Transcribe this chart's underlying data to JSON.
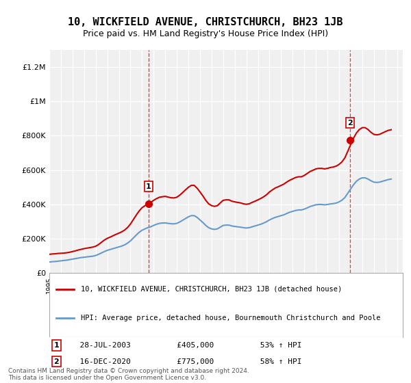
{
  "title": "10, WICKFIELD AVENUE, CHRISTCHURCH, BH23 1JB",
  "subtitle": "Price paid vs. HM Land Registry's House Price Index (HPI)",
  "ylabel_ticks": [
    "£0",
    "£200K",
    "£400K",
    "£600K",
    "£800K",
    "£1M",
    "£1.2M"
  ],
  "ylabel_values": [
    0,
    200000,
    400000,
    600000,
    800000,
    1000000,
    1200000
  ],
  "ylim": [
    0,
    1300000
  ],
  "xlim_start": 1995.0,
  "xlim_end": 2025.5,
  "background_color": "#ffffff",
  "plot_bg_color": "#f0f0f0",
  "grid_color": "#ffffff",
  "red_line_color": "#cc0000",
  "blue_line_color": "#6699cc",
  "sale1_x": 2003.57,
  "sale1_y": 405000,
  "sale1_label": "1",
  "sale1_date": "28-JUL-2003",
  "sale1_price": "£405,000",
  "sale1_hpi": "53% ↑ HPI",
  "sale2_x": 2020.96,
  "sale2_y": 775000,
  "sale2_label": "2",
  "sale2_date": "16-DEC-2020",
  "sale2_price": "£775,000",
  "sale2_hpi": "58% ↑ HPI",
  "legend_line1": "10, WICKFIELD AVENUE, CHRISTCHURCH, BH23 1JB (detached house)",
  "legend_line2": "HPI: Average price, detached house, Bournemouth Christchurch and Poole",
  "footnote": "Contains HM Land Registry data © Crown copyright and database right 2024.\nThis data is licensed under the Open Government Licence v3.0.",
  "hpi_years": [
    1995.0,
    1995.25,
    1995.5,
    1995.75,
    1996.0,
    1996.25,
    1996.5,
    1996.75,
    1997.0,
    1997.25,
    1997.5,
    1997.75,
    1998.0,
    1998.25,
    1998.5,
    1998.75,
    1999.0,
    1999.25,
    1999.5,
    1999.75,
    2000.0,
    2000.25,
    2000.5,
    2000.75,
    2001.0,
    2001.25,
    2001.5,
    2001.75,
    2002.0,
    2002.25,
    2002.5,
    2002.75,
    2003.0,
    2003.25,
    2003.5,
    2003.75,
    2004.0,
    2004.25,
    2004.5,
    2004.75,
    2005.0,
    2005.25,
    2005.5,
    2005.75,
    2006.0,
    2006.25,
    2006.5,
    2006.75,
    2007.0,
    2007.25,
    2007.5,
    2007.75,
    2008.0,
    2008.25,
    2008.5,
    2008.75,
    2009.0,
    2009.25,
    2009.5,
    2009.75,
    2010.0,
    2010.25,
    2010.5,
    2010.75,
    2011.0,
    2011.25,
    2011.5,
    2011.75,
    2012.0,
    2012.25,
    2012.5,
    2012.75,
    2013.0,
    2013.25,
    2013.5,
    2013.75,
    2014.0,
    2014.25,
    2014.5,
    2014.75,
    2015.0,
    2015.25,
    2015.5,
    2015.75,
    2016.0,
    2016.25,
    2016.5,
    2016.75,
    2017.0,
    2017.25,
    2017.5,
    2017.75,
    2018.0,
    2018.25,
    2018.5,
    2018.75,
    2019.0,
    2019.25,
    2019.5,
    2019.75,
    2020.0,
    2020.25,
    2020.5,
    2020.75,
    2021.0,
    2021.25,
    2021.5,
    2021.75,
    2022.0,
    2022.25,
    2022.5,
    2022.75,
    2023.0,
    2023.25,
    2023.5,
    2023.75,
    2024.0,
    2024.25,
    2024.5
  ],
  "hpi_values": [
    65000,
    67000,
    68000,
    70000,
    72000,
    74000,
    76000,
    79000,
    82000,
    85000,
    88000,
    91000,
    93000,
    95000,
    97000,
    99000,
    103000,
    110000,
    118000,
    126000,
    133000,
    138000,
    143000,
    148000,
    153000,
    158000,
    165000,
    175000,
    188000,
    205000,
    222000,
    238000,
    250000,
    258000,
    265000,
    270000,
    278000,
    285000,
    290000,
    292000,
    293000,
    290000,
    288000,
    287000,
    290000,
    298000,
    308000,
    318000,
    328000,
    335000,
    335000,
    325000,
    310000,
    295000,
    278000,
    265000,
    258000,
    255000,
    258000,
    268000,
    278000,
    280000,
    280000,
    275000,
    272000,
    270000,
    268000,
    265000,
    263000,
    265000,
    270000,
    275000,
    280000,
    285000,
    292000,
    300000,
    310000,
    318000,
    325000,
    330000,
    335000,
    340000,
    348000,
    355000,
    360000,
    365000,
    368000,
    368000,
    373000,
    380000,
    388000,
    393000,
    398000,
    400000,
    400000,
    398000,
    400000,
    403000,
    405000,
    408000,
    415000,
    425000,
    440000,
    465000,
    490000,
    515000,
    535000,
    548000,
    555000,
    555000,
    548000,
    538000,
    530000,
    528000,
    530000,
    535000,
    540000,
    545000,
    548000
  ],
  "red_years": [
    1995.0,
    1995.25,
    1995.5,
    1995.75,
    1996.0,
    1996.25,
    1996.5,
    1996.75,
    1997.0,
    1997.25,
    1997.5,
    1997.75,
    1998.0,
    1998.25,
    1998.5,
    1998.75,
    1999.0,
    1999.25,
    1999.5,
    1999.75,
    2000.0,
    2000.25,
    2000.5,
    2000.75,
    2001.0,
    2001.25,
    2001.5,
    2001.75,
    2002.0,
    2002.25,
    2002.5,
    2002.75,
    2003.0,
    2003.25,
    2003.5,
    2003.75,
    2004.0,
    2004.25,
    2004.5,
    2004.75,
    2005.0,
    2005.25,
    2005.5,
    2005.75,
    2006.0,
    2006.25,
    2006.5,
    2006.75,
    2007.0,
    2007.25,
    2007.5,
    2007.75,
    2008.0,
    2008.25,
    2008.5,
    2008.75,
    2009.0,
    2009.25,
    2009.5,
    2009.75,
    2010.0,
    2010.25,
    2010.5,
    2010.75,
    2011.0,
    2011.25,
    2011.5,
    2011.75,
    2012.0,
    2012.25,
    2012.5,
    2012.75,
    2013.0,
    2013.25,
    2013.5,
    2013.75,
    2014.0,
    2014.25,
    2014.5,
    2014.75,
    2015.0,
    2015.25,
    2015.5,
    2015.75,
    2016.0,
    2016.25,
    2016.5,
    2016.75,
    2017.0,
    2017.25,
    2017.5,
    2017.75,
    2018.0,
    2018.25,
    2018.5,
    2018.75,
    2019.0,
    2019.25,
    2019.5,
    2019.75,
    2020.0,
    2020.25,
    2020.5,
    2020.75,
    2021.0,
    2021.25,
    2021.5,
    2021.75,
    2022.0,
    2022.25,
    2022.5,
    2022.75,
    2023.0,
    2023.25,
    2023.5,
    2023.75,
    2024.0,
    2024.25,
    2024.5
  ],
  "red_values": [
    110000,
    112000,
    113000,
    115000,
    116000,
    117000,
    119000,
    122000,
    126000,
    130000,
    135000,
    139000,
    143000,
    146000,
    149000,
    152000,
    157000,
    167000,
    180000,
    193000,
    203000,
    210000,
    218000,
    226000,
    233000,
    241000,
    251000,
    266000,
    286000,
    312000,
    338000,
    362000,
    381000,
    393000,
    403000,
    412000,
    424000,
    434000,
    442000,
    445000,
    447000,
    443000,
    439000,
    438000,
    442000,
    454000,
    469000,
    485000,
    500000,
    511000,
    511000,
    495000,
    473000,
    450000,
    424000,
    404000,
    393000,
    389000,
    393000,
    409000,
    424000,
    427000,
    427000,
    419000,
    415000,
    412000,
    409000,
    404000,
    401000,
    404000,
    412000,
    419000,
    427000,
    435000,
    445000,
    457000,
    473000,
    485000,
    496000,
    503000,
    511000,
    519000,
    531000,
    541000,
    549000,
    557000,
    561000,
    561000,
    569000,
    580000,
    592000,
    599000,
    607000,
    610000,
    610000,
    607000,
    610000,
    615000,
    618000,
    623000,
    633000,
    648000,
    671000,
    709000,
    748000,
    786000,
    816000,
    836000,
    847000,
    847000,
    836000,
    820000,
    808000,
    805000,
    808000,
    816000,
    824000,
    831000,
    835000
  ]
}
